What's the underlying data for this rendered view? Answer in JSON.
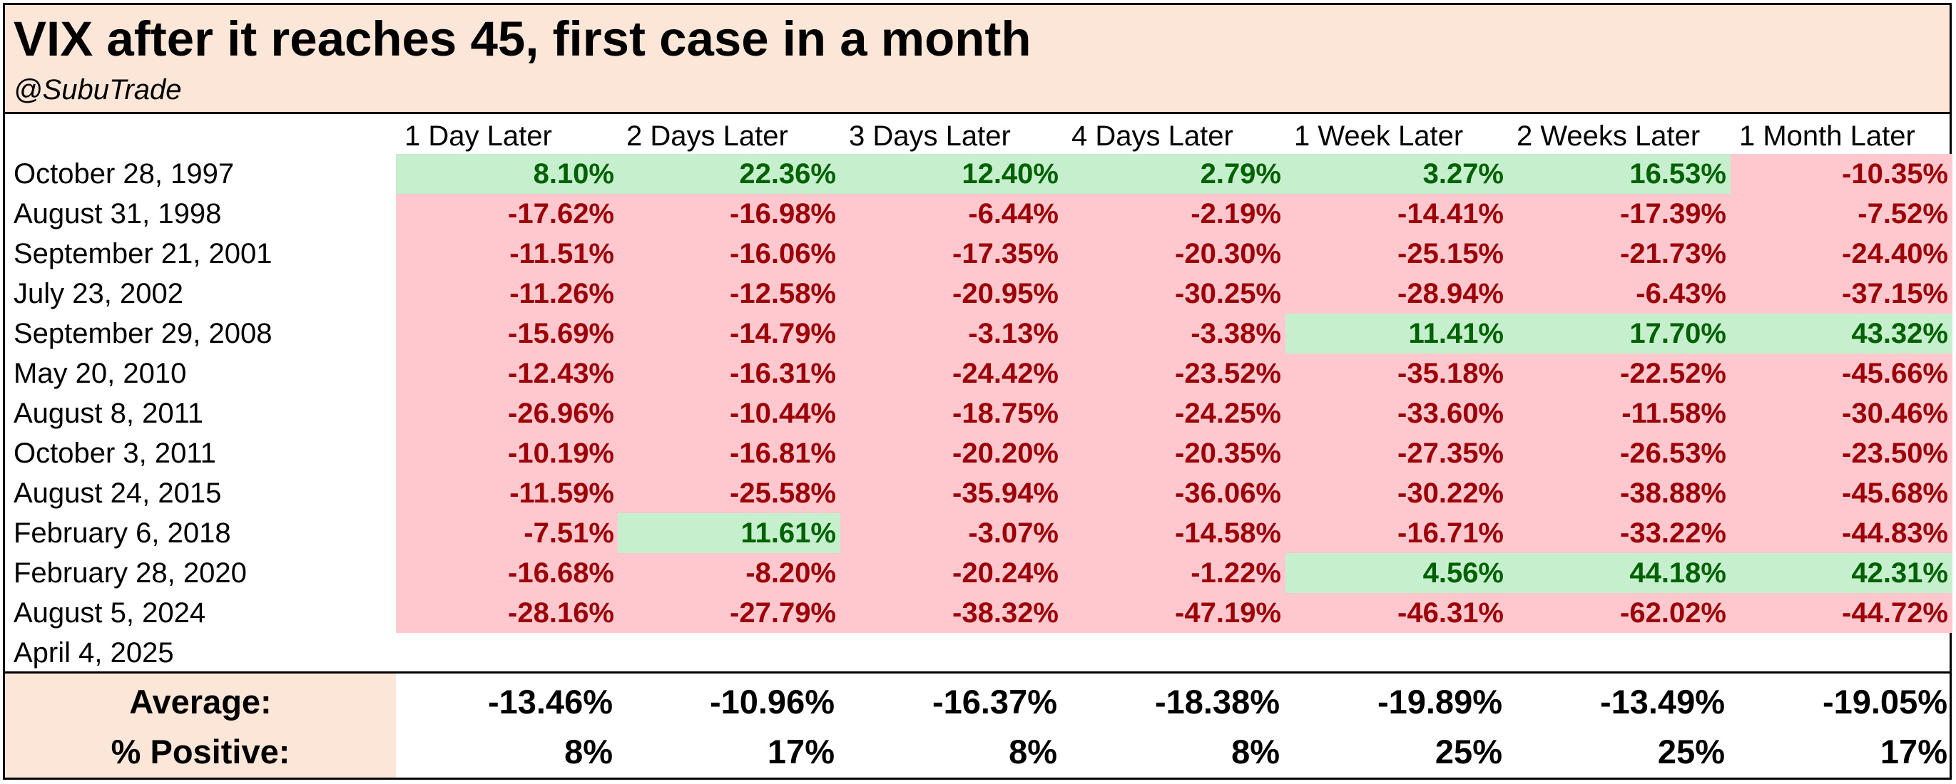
{
  "title": "VIX after it reaches 45, first case in a month",
  "subtitle": "@SubuTrade",
  "colors": {
    "header_bg": "#fbe6d8",
    "positive_fill": "#c6efce",
    "positive_text": "#006100",
    "negative_fill": "#ffc7ce",
    "negative_text": "#9c0006"
  },
  "chart_data": {
    "type": "table",
    "title": "VIX after it reaches 45, first case in a month",
    "subtitle": "@SubuTrade",
    "columns": [
      "1 Day Later",
      "2 Days Later",
      "3 Days Later",
      "4 Days Later",
      "1 Week Later",
      "2 Weeks Later",
      "1 Month Later"
    ],
    "rows": [
      {
        "label": "October 28, 1997",
        "values": [
          "8.10%",
          "22.36%",
          "12.40%",
          "2.79%",
          "3.27%",
          "16.53%",
          "-10.35%"
        ]
      },
      {
        "label": "August 31, 1998",
        "values": [
          "-17.62%",
          "-16.98%",
          "-6.44%",
          "-2.19%",
          "-14.41%",
          "-17.39%",
          "-7.52%"
        ]
      },
      {
        "label": "September 21, 2001",
        "values": [
          "-11.51%",
          "-16.06%",
          "-17.35%",
          "-20.30%",
          "-25.15%",
          "-21.73%",
          "-24.40%"
        ]
      },
      {
        "label": "July 23, 2002",
        "values": [
          "-11.26%",
          "-12.58%",
          "-20.95%",
          "-30.25%",
          "-28.94%",
          "-6.43%",
          "-37.15%"
        ]
      },
      {
        "label": "September 29, 2008",
        "values": [
          "-15.69%",
          "-14.79%",
          "-3.13%",
          "-3.38%",
          "11.41%",
          "17.70%",
          "43.32%"
        ]
      },
      {
        "label": "May 20, 2010",
        "values": [
          "-12.43%",
          "-16.31%",
          "-24.42%",
          "-23.52%",
          "-35.18%",
          "-22.52%",
          "-45.66%"
        ]
      },
      {
        "label": "August 8, 2011",
        "values": [
          "-26.96%",
          "-10.44%",
          "-18.75%",
          "-24.25%",
          "-33.60%",
          "-11.58%",
          "-30.46%"
        ]
      },
      {
        "label": "October 3, 2011",
        "values": [
          "-10.19%",
          "-16.81%",
          "-20.20%",
          "-20.35%",
          "-27.35%",
          "-26.53%",
          "-23.50%"
        ]
      },
      {
        "label": "August 24, 2015",
        "values": [
          "-11.59%",
          "-25.58%",
          "-35.94%",
          "-36.06%",
          "-30.22%",
          "-38.88%",
          "-45.68%"
        ]
      },
      {
        "label": "February 6, 2018",
        "values": [
          "-7.51%",
          "11.61%",
          "-3.07%",
          "-14.58%",
          "-16.71%",
          "-33.22%",
          "-44.83%"
        ]
      },
      {
        "label": "February 28, 2020",
        "values": [
          "-16.68%",
          "-8.20%",
          "-20.24%",
          "-1.22%",
          "4.56%",
          "44.18%",
          "42.31%"
        ]
      },
      {
        "label": "August 5, 2024",
        "values": [
          "-28.16%",
          "-27.79%",
          "-38.32%",
          "-47.19%",
          "-46.31%",
          "-62.02%",
          "-44.72%"
        ]
      },
      {
        "label": "April 4, 2025",
        "values": []
      }
    ],
    "summary": [
      {
        "label": "Average:",
        "values": [
          "-13.46%",
          "-10.96%",
          "-16.37%",
          "-18.38%",
          "-19.89%",
          "-13.49%",
          "-19.05%"
        ]
      },
      {
        "label": "% Positive:",
        "values": [
          "8%",
          "17%",
          "8%",
          "8%",
          "25%",
          "25%",
          "17%"
        ]
      }
    ]
  }
}
